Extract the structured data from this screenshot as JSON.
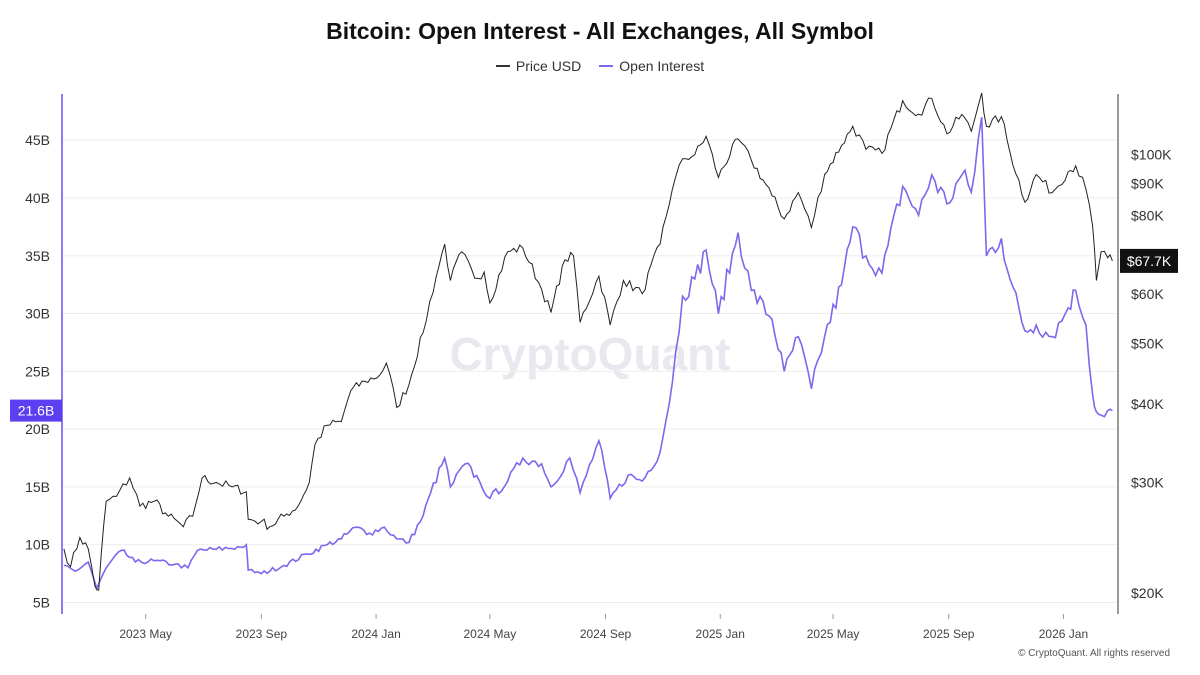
{
  "header": {
    "title": "Bitcoin: Open Interest - All Exchanges, All Symbol"
  },
  "legend": {
    "items": [
      {
        "label": "Price USD",
        "color": "#333333"
      },
      {
        "label": "Open Interest",
        "color": "#7b68ee"
      }
    ]
  },
  "watermark": "CryptoQuant",
  "copyright": "© CryptoQuant. All rights reserved",
  "colors": {
    "price": "#222222",
    "open_interest": "#7b68ee",
    "left_axis": "#6a4ff0",
    "oi_badge": "#5b3ff0",
    "price_badge": "#111111"
  },
  "chart_data": {
    "type": "line",
    "title": "Bitcoin: Open Interest - All Exchanges, All Symbol",
    "x_ticks": [
      "2023 May",
      "2023 Sep",
      "2024 Jan",
      "2024 May",
      "2024 Sep",
      "2025 Jan",
      "2025 May",
      "2025 Sep",
      "2026 Jan"
    ],
    "x_range": [
      "2023-02-01",
      "2026-02-28"
    ],
    "y_left": {
      "label": "",
      "ticks": [
        "5B",
        "10B",
        "15B",
        "20B",
        "25B",
        "30B",
        "35B",
        "40B",
        "45B"
      ],
      "tick_values": [
        5,
        10,
        15,
        20,
        25,
        30,
        35,
        40,
        45
      ],
      "range": [
        4,
        49
      ],
      "unit": "B"
    },
    "y_right": {
      "label": "",
      "scale": "log",
      "ticks": [
        "$20K",
        "$30K",
        "$40K",
        "$50K",
        "$60K",
        "$80K",
        "$90K",
        "$100K"
      ],
      "tick_values": [
        20000,
        30000,
        40000,
        50000,
        60000,
        80000,
        90000,
        100000
      ],
      "range": [
        18500,
        125000
      ]
    },
    "current_badges": {
      "open_interest": {
        "label": "21.6B",
        "value": 21.6
      },
      "price": {
        "label": "$67.7K",
        "value": 67700
      }
    },
    "series": [
      {
        "name": "Price USD",
        "axis": "right",
        "points": [
          [
            "2023-02-03",
            23500
          ],
          [
            "2023-02-10",
            22000
          ],
          [
            "2023-02-20",
            24500
          ],
          [
            "2023-03-01",
            23500
          ],
          [
            "2023-03-08",
            20500
          ],
          [
            "2023-03-12",
            20200
          ],
          [
            "2023-03-20",
            28000
          ],
          [
            "2023-03-31",
            28500
          ],
          [
            "2023-04-14",
            30500
          ],
          [
            "2023-04-25",
            27500
          ],
          [
            "2023-05-10",
            28000
          ],
          [
            "2023-05-25",
            26500
          ],
          [
            "2023-06-10",
            25500
          ],
          [
            "2023-06-20",
            26500
          ],
          [
            "2023-06-30",
            30500
          ],
          [
            "2023-07-15",
            30000
          ],
          [
            "2023-08-01",
            29500
          ],
          [
            "2023-08-16",
            29000
          ],
          [
            "2023-08-18",
            26200
          ],
          [
            "2023-09-01",
            26000
          ],
          [
            "2023-09-10",
            25500
          ],
          [
            "2023-09-25",
            26500
          ],
          [
            "2023-10-10",
            27500
          ],
          [
            "2023-10-22",
            30000
          ],
          [
            "2023-10-28",
            34500
          ],
          [
            "2023-11-10",
            37000
          ],
          [
            "2023-11-25",
            37500
          ],
          [
            "2023-12-05",
            42000
          ],
          [
            "2023-12-20",
            43500
          ],
          [
            "2024-01-05",
            44500
          ],
          [
            "2024-01-12",
            46500
          ],
          [
            "2024-01-23",
            39500
          ],
          [
            "2024-02-05",
            43000
          ],
          [
            "2024-02-20",
            52000
          ],
          [
            "2024-03-05",
            64000
          ],
          [
            "2024-03-14",
            72000
          ],
          [
            "2024-03-20",
            63000
          ],
          [
            "2024-04-01",
            70000
          ],
          [
            "2024-04-15",
            63500
          ],
          [
            "2024-04-25",
            65000
          ],
          [
            "2024-05-01",
            58000
          ],
          [
            "2024-05-20",
            70000
          ],
          [
            "2024-06-05",
            71000
          ],
          [
            "2024-06-25",
            61000
          ],
          [
            "2024-07-05",
            56000
          ],
          [
            "2024-07-20",
            68000
          ],
          [
            "2024-07-29",
            69000
          ],
          [
            "2024-08-05",
            54000
          ],
          [
            "2024-08-25",
            64000
          ],
          [
            "2024-09-06",
            53500
          ],
          [
            "2024-09-20",
            63000
          ],
          [
            "2024-10-10",
            60000
          ],
          [
            "2024-10-29",
            72000
          ],
          [
            "2024-11-11",
            88000
          ],
          [
            "2024-11-22",
            98500
          ],
          [
            "2024-12-05",
            100000
          ],
          [
            "2024-12-17",
            107000
          ],
          [
            "2024-12-30",
            92000
          ],
          [
            "2025-01-20",
            106000
          ],
          [
            "2025-02-03",
            98000
          ],
          [
            "2025-02-25",
            86000
          ],
          [
            "2025-03-10",
            79000
          ],
          [
            "2025-03-25",
            87000
          ],
          [
            "2025-04-08",
            76500
          ],
          [
            "2025-04-22",
            93000
          ],
          [
            "2025-05-10",
            103500
          ],
          [
            "2025-05-22",
            111000
          ],
          [
            "2025-06-05",
            102000
          ],
          [
            "2025-06-22",
            100500
          ],
          [
            "2025-07-14",
            122000
          ],
          [
            "2025-07-31",
            116000
          ],
          [
            "2025-08-14",
            123000
          ],
          [
            "2025-08-30",
            108000
          ],
          [
            "2025-09-15",
            116000
          ],
          [
            "2025-09-25",
            109000
          ],
          [
            "2025-10-06",
            125500
          ],
          [
            "2025-10-11",
            111000
          ],
          [
            "2025-10-27",
            115000
          ],
          [
            "2025-11-05",
            101000
          ],
          [
            "2025-11-21",
            84000
          ],
          [
            "2025-12-03",
            93000
          ],
          [
            "2025-12-20",
            87000
          ],
          [
            "2026-01-06",
            94000
          ],
          [
            "2026-01-14",
            96000
          ],
          [
            "2026-01-25",
            88000
          ],
          [
            "2026-02-01",
            77000
          ],
          [
            "2026-02-05",
            63000
          ],
          [
            "2026-02-10",
            70000
          ],
          [
            "2026-02-17",
            68500
          ],
          [
            "2026-02-22",
            67700
          ]
        ]
      },
      {
        "name": "Open Interest",
        "axis": "left",
        "unit": "B",
        "points": [
          [
            "2023-02-03",
            8.2
          ],
          [
            "2023-02-15",
            7.7
          ],
          [
            "2023-03-01",
            8.5
          ],
          [
            "2023-03-10",
            6.2
          ],
          [
            "2023-03-20",
            8.0
          ],
          [
            "2023-04-05",
            9.5
          ],
          [
            "2023-04-20",
            8.5
          ],
          [
            "2023-05-10",
            8.6
          ],
          [
            "2023-06-01",
            8.3
          ],
          [
            "2023-06-15",
            8.0
          ],
          [
            "2023-06-25",
            9.5
          ],
          [
            "2023-07-15",
            9.6
          ],
          [
            "2023-08-10",
            9.8
          ],
          [
            "2023-08-16",
            10.0
          ],
          [
            "2023-08-18",
            7.8
          ],
          [
            "2023-09-01",
            7.5
          ],
          [
            "2023-09-25",
            8.2
          ],
          [
            "2023-10-20",
            9.2
          ],
          [
            "2023-11-10",
            10.0
          ],
          [
            "2023-11-25",
            10.5
          ],
          [
            "2023-12-10",
            11.5
          ],
          [
            "2023-12-25",
            11.0
          ],
          [
            "2024-01-10",
            11.5
          ],
          [
            "2024-01-23",
            10.5
          ],
          [
            "2024-02-05",
            10.2
          ],
          [
            "2024-02-20",
            12.5
          ],
          [
            "2024-02-28",
            14.5
          ],
          [
            "2024-03-14",
            17.5
          ],
          [
            "2024-03-20",
            15.0
          ],
          [
            "2024-04-05",
            17.0
          ],
          [
            "2024-04-20",
            15.5
          ],
          [
            "2024-05-01",
            14.0
          ],
          [
            "2024-05-20",
            15.5
          ],
          [
            "2024-06-05",
            17.5
          ],
          [
            "2024-06-25",
            17.0
          ],
          [
            "2024-07-05",
            15.0
          ],
          [
            "2024-07-25",
            17.5
          ],
          [
            "2024-08-05",
            14.5
          ],
          [
            "2024-08-25",
            19.0
          ],
          [
            "2024-09-06",
            14.0
          ],
          [
            "2024-09-25",
            16.0
          ],
          [
            "2024-10-10",
            15.5
          ],
          [
            "2024-10-29",
            18.0
          ],
          [
            "2024-11-11",
            24.0
          ],
          [
            "2024-11-22",
            31.5
          ],
          [
            "2024-12-05",
            33.0
          ],
          [
            "2024-12-17",
            35.5
          ],
          [
            "2024-12-30",
            30.0
          ],
          [
            "2025-01-20",
            37.0
          ],
          [
            "2025-02-03",
            32.0
          ],
          [
            "2025-02-25",
            29.5
          ],
          [
            "2025-03-10",
            25.0
          ],
          [
            "2025-03-25",
            28.0
          ],
          [
            "2025-04-08",
            23.5
          ],
          [
            "2025-04-22",
            28.0
          ],
          [
            "2025-05-10",
            32.5
          ],
          [
            "2025-05-22",
            37.5
          ],
          [
            "2025-06-05",
            35.0
          ],
          [
            "2025-06-22",
            33.5
          ],
          [
            "2025-07-14",
            41.0
          ],
          [
            "2025-07-31",
            38.5
          ],
          [
            "2025-08-14",
            42.0
          ],
          [
            "2025-08-30",
            39.5
          ],
          [
            "2025-09-15",
            42.0
          ],
          [
            "2025-09-25",
            40.5
          ],
          [
            "2025-10-06",
            47.0
          ],
          [
            "2025-10-11",
            35.0
          ],
          [
            "2025-10-27",
            36.5
          ],
          [
            "2025-11-05",
            33.0
          ],
          [
            "2025-11-21",
            28.5
          ],
          [
            "2025-12-03",
            29.0
          ],
          [
            "2025-12-20",
            28.0
          ],
          [
            "2026-01-06",
            30.5
          ],
          [
            "2026-01-14",
            32.0
          ],
          [
            "2026-01-25",
            29.0
          ],
          [
            "2026-02-01",
            23.0
          ],
          [
            "2026-02-05",
            21.5
          ],
          [
            "2026-02-10",
            21.2
          ],
          [
            "2026-02-17",
            21.6
          ],
          [
            "2026-02-22",
            21.6
          ]
        ]
      }
    ]
  }
}
